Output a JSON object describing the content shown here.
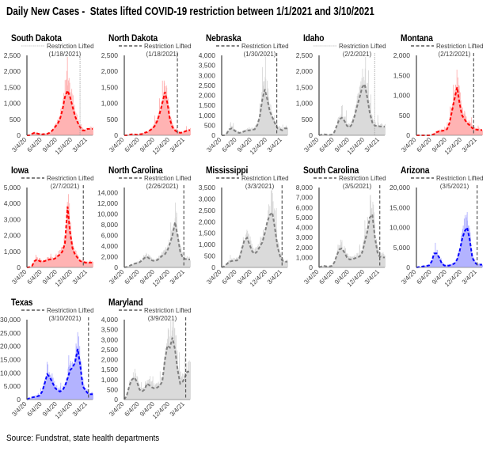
{
  "title": "Daily New Cases -  States lifted COVID-19 restriction between 1/1/2021 and 3/10/2021",
  "source": "Source: Fundstrat, state health departments",
  "colors": {
    "red": {
      "line": "#ff0000",
      "fill": "#ffb3b3"
    },
    "grey": {
      "line": "#7f7f7f",
      "fill": "#d9d9d9"
    },
    "blue": {
      "line": "#0000ff",
      "fill": "#b3b3ff"
    }
  },
  "chart_data": {
    "type": "area",
    "legend_label": "Restriction Lifted",
    "x_ticks": [
      "3/4/20",
      "6/4/20",
      "9/4/20",
      "12/4/20",
      "3/4/21"
    ],
    "dates": [
      "3/4/20",
      "3/19/20",
      "4/4/20",
      "4/19/20",
      "5/4/20",
      "5/19/20",
      "6/4/20",
      "6/19/20",
      "7/4/20",
      "7/19/20",
      "8/4/20",
      "8/19/20",
      "9/4/20",
      "9/19/20",
      "10/4/20",
      "10/19/20",
      "11/4/20",
      "11/19/20",
      "12/4/20",
      "12/19/20",
      "1/4/21",
      "1/19/21",
      "2/4/21",
      "2/19/21",
      "3/4/21",
      "3/19/21",
      "4/4/21"
    ],
    "panels": [
      {
        "state": "South Dakota",
        "lifted": "1/18/2021",
        "color": "red",
        "legend_style": "dotted",
        "ylim": [
          0,
          2500
        ],
        "yticks": [
          0,
          500,
          1000,
          1500,
          2000,
          2500
        ],
        "values": [
          0,
          0,
          50,
          80,
          60,
          40,
          30,
          40,
          50,
          80,
          150,
          250,
          350,
          500,
          800,
          1200,
          1400,
          1200,
          900,
          600,
          400,
          250,
          150,
          150,
          200,
          200,
          200
        ]
      },
      {
        "state": "North Dakota",
        "lifted": "1/18/2021",
        "color": "red",
        "legend_style": "dashed",
        "ylim": [
          0,
          2500
        ],
        "yticks": [
          0,
          500,
          1000,
          1500,
          2000,
          2500
        ],
        "values": [
          0,
          0,
          20,
          30,
          30,
          20,
          30,
          40,
          80,
          100,
          150,
          200,
          300,
          450,
          700,
          1000,
          1350,
          1000,
          500,
          250,
          150,
          100,
          80,
          90,
          120,
          150,
          160
        ]
      },
      {
        "state": "Nebraska",
        "lifted": "1/30/2021",
        "color": "grey",
        "legend_style": "dashed",
        "ylim": [
          0,
          4000
        ],
        "yticks": [
          0,
          500,
          1000,
          1500,
          2000,
          2500,
          3000,
          3500,
          4000
        ],
        "values": [
          0,
          0,
          100,
          300,
          350,
          250,
          150,
          120,
          150,
          200,
          250,
          250,
          280,
          300,
          500,
          900,
          1800,
          2300,
          1800,
          1200,
          900,
          600,
          350,
          300,
          250,
          350,
          350
        ]
      },
      {
        "state": "Idaho",
        "lifted": "2/2/2021",
        "color": "grey",
        "legend_style": "dotted",
        "ylim": [
          0,
          2500
        ],
        "yticks": [
          0,
          500,
          1000,
          1500,
          2000,
          2500
        ],
        "values": [
          0,
          20,
          30,
          20,
          10,
          20,
          100,
          300,
          500,
          550,
          450,
          300,
          250,
          350,
          600,
          900,
          1200,
          1500,
          1600,
          1200,
          700,
          400,
          300,
          300,
          280,
          270,
          270
        ]
      },
      {
        "state": "Montana",
        "lifted": "2/12/2021",
        "color": "red",
        "legend_style": "dashed",
        "ylim": [
          0,
          2000
        ],
        "yticks": [
          0,
          500,
          1000,
          1500,
          2000
        ],
        "values": [
          0,
          0,
          0,
          0,
          0,
          0,
          10,
          30,
          80,
          100,
          110,
          120,
          150,
          300,
          600,
          900,
          1200,
          800,
          500,
          400,
          300,
          250,
          180,
          150,
          140,
          130,
          130
        ]
      },
      {
        "state": "Iowa",
        "lifted": "2/7/2021",
        "color": "red",
        "legend_style": "dashed",
        "ylim": [
          0,
          5000
        ],
        "yticks": [
          0,
          1000,
          2000,
          3000,
          4000,
          5000
        ],
        "values": [
          0,
          20,
          100,
          400,
          500,
          400,
          350,
          400,
          450,
          500,
          500,
          550,
          700,
          800,
          1000,
          1500,
          3800,
          2200,
          1200,
          800,
          600,
          400,
          350,
          300,
          280,
          300,
          300
        ]
      },
      {
        "state": "North Carolina",
        "lifted": "2/26/2021",
        "color": "grey",
        "legend_style": "dashed",
        "ylim": [
          0,
          15000
        ],
        "yticks": [
          0,
          2000,
          4000,
          6000,
          8000,
          10000,
          12000,
          14000
        ],
        "values": [
          0,
          100,
          300,
          500,
          700,
          800,
          1000,
          1300,
          1800,
          2000,
          1600,
          1300,
          1200,
          1400,
          1800,
          2200,
          2500,
          3200,
          4500,
          6000,
          8500,
          6000,
          3000,
          1800,
          1600,
          1500,
          1500
        ]
      },
      {
        "state": "Mississippi",
        "lifted": "3/3/2021",
        "color": "grey",
        "legend_style": "dashed",
        "ylim": [
          0,
          3500
        ],
        "yticks": [
          0,
          500,
          1000,
          1500,
          2000,
          2500,
          3000,
          3500
        ],
        "values": [
          0,
          50,
          150,
          250,
          280,
          300,
          300,
          400,
          800,
          1200,
          1300,
          1000,
          700,
          600,
          700,
          900,
          1100,
          1500,
          2000,
          2300,
          2400,
          1700,
          900,
          500,
          300,
          250,
          250
        ]
      },
      {
        "state": "South Carolina",
        "lifted": "3/5/2021",
        "color": "grey",
        "legend_style": "dashed",
        "ylim": [
          0,
          8000
        ],
        "yticks": [
          0,
          1000,
          2000,
          3000,
          4000,
          5000,
          6000,
          7000,
          8000
        ],
        "values": [
          0,
          100,
          150,
          100,
          100,
          150,
          500,
          1200,
          1800,
          1900,
          1500,
          1000,
          800,
          800,
          900,
          1000,
          1100,
          1500,
          2500,
          3500,
          5000,
          5300,
          3000,
          1500,
          1100,
          1000,
          1000
        ]
      },
      {
        "state": "Arizona",
        "lifted": "3/5/2021",
        "color": "blue",
        "legend_style": "dashed",
        "ylim": [
          0,
          20000
        ],
        "yticks": [
          0,
          5000,
          10000,
          15000,
          20000
        ],
        "values": [
          0,
          100,
          200,
          300,
          400,
          500,
          1500,
          3500,
          3500,
          2500,
          1000,
          500,
          400,
          500,
          700,
          1000,
          2000,
          4000,
          7000,
          9000,
          10000,
          7000,
          2500,
          1200,
          800,
          700,
          700
        ]
      },
      {
        "state": "Texas",
        "lifted": "3/10/2021",
        "color": "blue",
        "legend_style": "dashed",
        "ylim": [
          0,
          30000
        ],
        "yticks": [
          0,
          5000,
          10000,
          15000,
          20000,
          25000,
          30000
        ],
        "values": [
          0,
          500,
          800,
          1000,
          1200,
          1500,
          3000,
          6000,
          9500,
          8500,
          6500,
          4500,
          3500,
          3000,
          3500,
          5000,
          8000,
          11000,
          12000,
          14000,
          19000,
          13000,
          5000,
          3500,
          2500,
          2000,
          2000
        ]
      },
      {
        "state": "Maryland",
        "lifted": "3/9/2021",
        "color": "grey",
        "legend_style": "dashed",
        "ylim": [
          0,
          4000
        ],
        "yticks": [
          0,
          500,
          1000,
          1500,
          2000,
          2500,
          3000,
          3500,
          4000
        ],
        "values": [
          0,
          200,
          700,
          1000,
          1100,
          900,
          500,
          400,
          500,
          800,
          700,
          600,
          550,
          600,
          700,
          900,
          2000,
          2700,
          2600,
          3100,
          2500,
          1500,
          800,
          900,
          1100,
          1400,
          1400
        ]
      }
    ]
  }
}
